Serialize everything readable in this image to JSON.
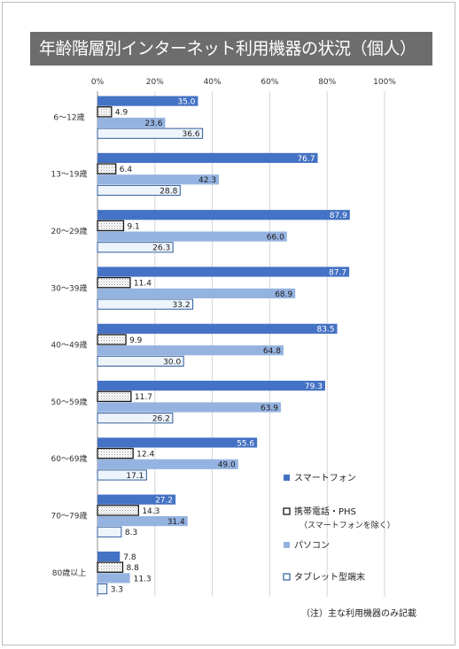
{
  "page": {
    "title": "年齢階層別インターネット利用機器の状況（個人）",
    "footnote": "（注）主な利用機器のみ記載"
  },
  "chart_data": {
    "type": "bar",
    "orientation": "horizontal",
    "title": "年齢階層別インターネット利用機器の状況（個人）",
    "categories": [
      "6～12歳",
      "13～19歳",
      "20～29歳",
      "30～39歳",
      "40～49歳",
      "50～59歳",
      "60～69歳",
      "70～79歳",
      "80歳以上"
    ],
    "series": [
      {
        "name": "スマートフォン",
        "values": [
          35.0,
          76.7,
          87.9,
          87.7,
          83.5,
          79.3,
          55.6,
          27.2,
          7.8
        ],
        "color": "#4472c4",
        "style": "solid"
      },
      {
        "name": "携帯電話・PHS",
        "name_note": "（スマートフォンを除く）",
        "values": [
          4.9,
          6.4,
          9.1,
          11.4,
          9.9,
          11.7,
          12.4,
          14.3,
          8.8
        ],
        "color": "#ffffff",
        "style": "dotted"
      },
      {
        "name": "パソコン",
        "values": [
          23.6,
          42.3,
          66.0,
          68.9,
          64.8,
          63.9,
          49.0,
          31.4,
          11.3
        ],
        "color": "#95b3e0",
        "style": "solid"
      },
      {
        "name": "タブレット型端末",
        "values": [
          36.6,
          28.8,
          26.3,
          33.2,
          30.0,
          26.2,
          17.1,
          8.3,
          3.3
        ],
        "color": "#eef4fb",
        "style": "outline"
      }
    ],
    "x_ticks": [
      "0%",
      "20%",
      "40%",
      "60%",
      "80%",
      "100%"
    ],
    "xlim": [
      0,
      100
    ],
    "grid": true,
    "legend_position": "right"
  }
}
